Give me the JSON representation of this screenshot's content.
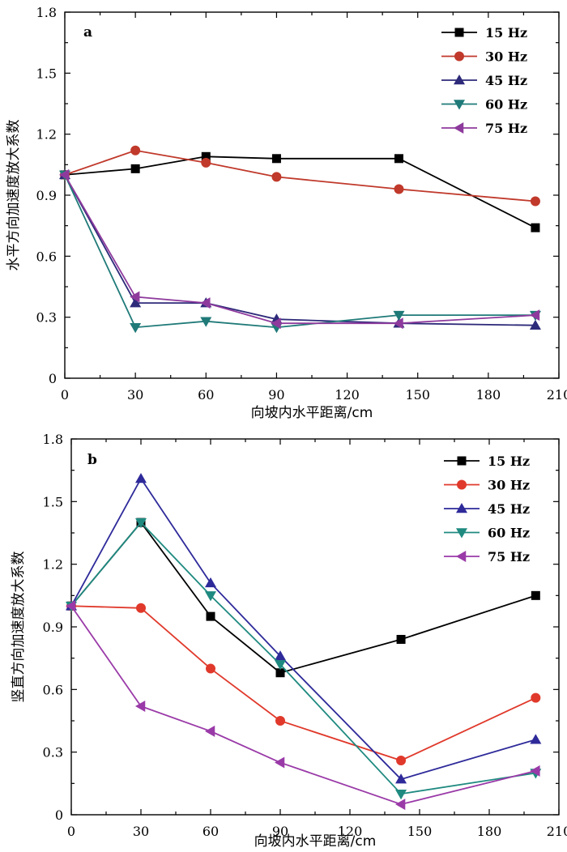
{
  "chart_data": [
    {
      "type": "line",
      "panel_label": "a",
      "xlabel": "向坡内水平距离/cm",
      "ylabel": "水平方向加速度放大系数",
      "xlim": [
        0,
        210
      ],
      "ylim": [
        0,
        1.8
      ],
      "xticks": [
        "0",
        "30",
        "60",
        "90",
        "120",
        "150",
        "180",
        "210"
      ],
      "yticks": [
        "0",
        "0.3",
        "0.6",
        "0.9",
        "1.2",
        "1.5",
        "1.8"
      ],
      "legend_position": "top-right",
      "x": [
        0,
        30,
        60,
        90,
        142,
        200
      ],
      "series": [
        {
          "name": "15 Hz",
          "color": "#000000",
          "marker": "square",
          "values": [
            1.0,
            1.03,
            1.09,
            1.08,
            1.08,
            0.74
          ]
        },
        {
          "name": "30 Hz",
          "color": "#c0392b",
          "marker": "circle",
          "values": [
            1.0,
            1.12,
            1.06,
            0.99,
            0.93,
            0.87
          ]
        },
        {
          "name": "45 Hz",
          "color": "#2e2a7a",
          "marker": "triangle-up",
          "values": [
            1.0,
            0.37,
            0.37,
            0.29,
            0.27,
            0.26
          ]
        },
        {
          "name": "60 Hz",
          "color": "#1f7a78",
          "marker": "triangle-down",
          "values": [
            1.0,
            0.25,
            0.28,
            0.25,
            0.31,
            0.31
          ]
        },
        {
          "name": "75 Hz",
          "color": "#8e3a9d",
          "marker": "triangle-left",
          "values": [
            1.0,
            0.4,
            0.37,
            0.27,
            0.27,
            0.31
          ]
        }
      ]
    },
    {
      "type": "line",
      "panel_label": "b",
      "xlabel": "向坡内水平距离/cm",
      "ylabel": "竖直方向加速度放大系数",
      "xlim": [
        0,
        210
      ],
      "ylim": [
        0,
        1.8
      ],
      "xticks": [
        "0",
        "30",
        "60",
        "90",
        "120",
        "150",
        "180",
        "210"
      ],
      "yticks": [
        "0",
        "0.3",
        "0.6",
        "0.9",
        "1.2",
        "1.5",
        "1.8"
      ],
      "legend_position": "top-right",
      "x": [
        0,
        30,
        60,
        90,
        142,
        200
      ],
      "series": [
        {
          "name": "15 Hz",
          "color": "#000000",
          "marker": "square",
          "values": [
            1.0,
            1.4,
            0.95,
            0.68,
            0.84,
            1.05
          ]
        },
        {
          "name": "30 Hz",
          "color": "#e0392b",
          "marker": "circle",
          "values": [
            1.0,
            0.99,
            0.7,
            0.45,
            0.26,
            0.56
          ]
        },
        {
          "name": "45 Hz",
          "color": "#2e2a9a",
          "marker": "triangle-up",
          "values": [
            1.0,
            1.61,
            1.11,
            0.76,
            0.17,
            0.36
          ]
        },
        {
          "name": "60 Hz",
          "color": "#1f8a80",
          "marker": "triangle-down",
          "values": [
            1.0,
            1.4,
            1.05,
            0.72,
            0.1,
            0.2
          ]
        },
        {
          "name": "75 Hz",
          "color": "#9a3aa8",
          "marker": "triangle-left",
          "values": [
            1.0,
            0.52,
            0.4,
            0.25,
            0.05,
            0.21
          ]
        }
      ]
    }
  ]
}
